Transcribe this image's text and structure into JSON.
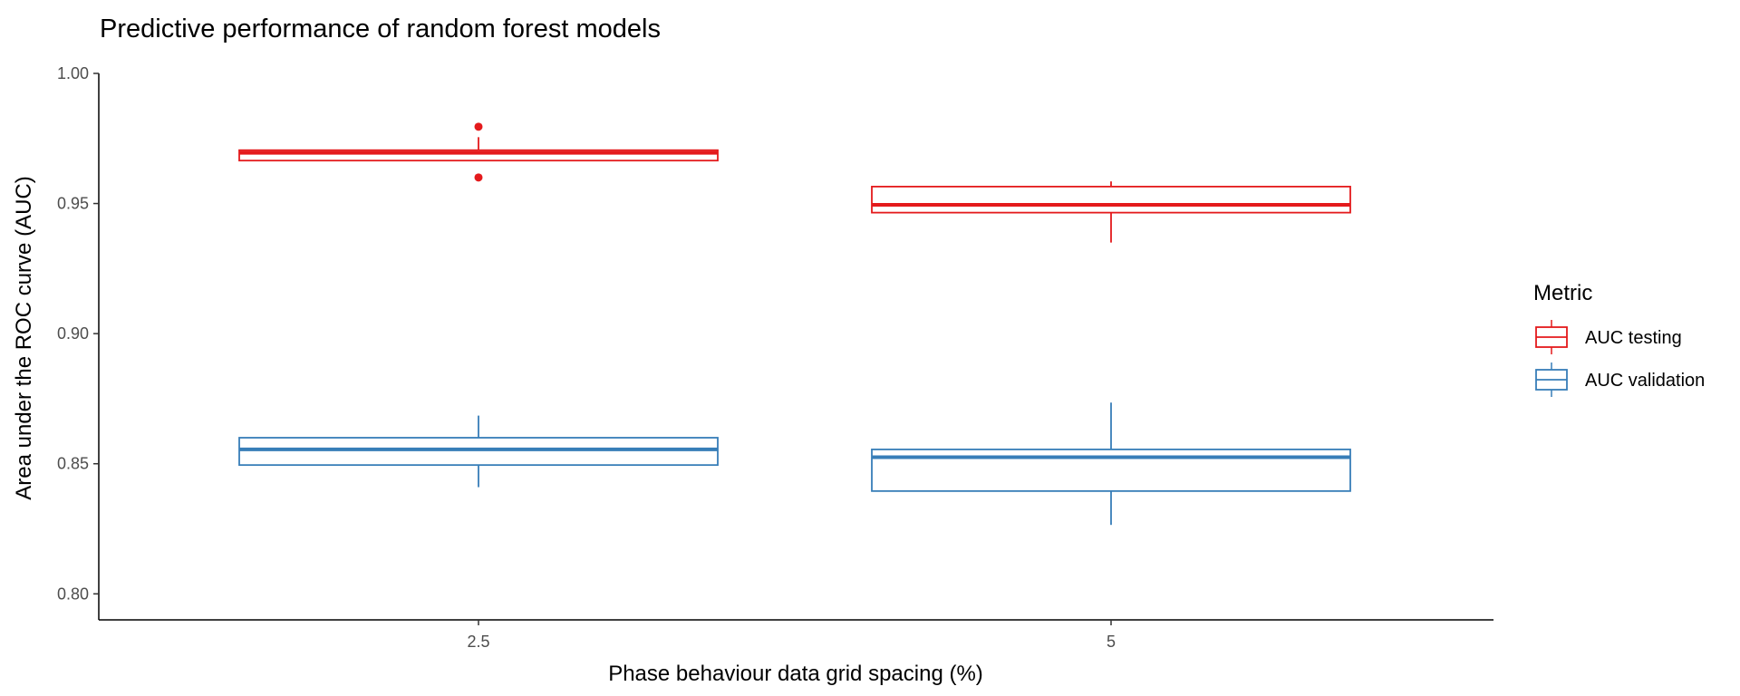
{
  "chart_data": {
    "type": "boxplot",
    "title": "Predictive performance of random forest models",
    "xlabel": "Phase behaviour data grid spacing (%)",
    "ylabel": "Area under the ROC curve (AUC)",
    "categories": [
      "2.5",
      "5"
    ],
    "ylim": [
      0.79,
      1.0
    ],
    "yticks": [
      "0.80",
      "0.85",
      "0.90",
      "0.95",
      "1.00"
    ],
    "grid": false,
    "legend": {
      "title": "Metric",
      "position": "right"
    },
    "series": [
      {
        "name": "AUC testing",
        "color": "#e41a1c",
        "boxes": [
          {
            "category": "2.5",
            "min": 0.9665,
            "q1": 0.9665,
            "median": 0.9695,
            "q3": 0.9705,
            "max": 0.9755,
            "outliers": [
              0.9795,
              0.96
            ]
          },
          {
            "category": "5",
            "min": 0.935,
            "q1": 0.9465,
            "median": 0.9495,
            "q3": 0.9565,
            "max": 0.9585,
            "outliers": []
          }
        ]
      },
      {
        "name": "AUC validation",
        "color": "#377eb8",
        "boxes": [
          {
            "category": "2.5",
            "min": 0.841,
            "q1": 0.8495,
            "median": 0.8555,
            "q3": 0.86,
            "max": 0.8685,
            "outliers": []
          },
          {
            "category": "5",
            "min": 0.8265,
            "q1": 0.8395,
            "median": 0.8525,
            "q3": 0.8555,
            "max": 0.8735,
            "outliers": []
          }
        ]
      }
    ]
  }
}
